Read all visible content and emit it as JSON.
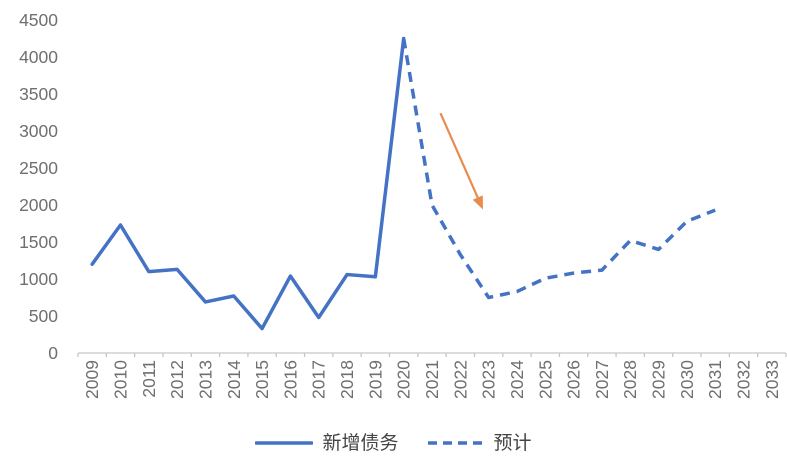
{
  "chart_data": {
    "type": "line",
    "title": "",
    "xlabel": "",
    "ylabel": "",
    "categories": [
      "2009",
      "2010",
      "2011",
      "2012",
      "2013",
      "2014",
      "2015",
      "2016",
      "2017",
      "2018",
      "2019",
      "2020",
      "2021",
      "2022",
      "2023",
      "2024",
      "2025",
      "2026",
      "2027",
      "2028",
      "2029",
      "2030",
      "2031",
      "2032",
      "2033"
    ],
    "ylim": [
      0,
      4500
    ],
    "ytick_step": 500,
    "yticks": [
      "0",
      "500",
      "1000",
      "1500",
      "2000",
      "2500",
      "3000",
      "3500",
      "4000",
      "4500"
    ],
    "grid": "off",
    "legend_position": "bottom",
    "series": [
      {
        "name": "新增债务",
        "line_style": "solid",
        "color": "#4472C4",
        "start_category": "2009",
        "values": [
          1200,
          1730,
          1100,
          1130,
          690,
          770,
          330,
          1040,
          480,
          1060,
          1030,
          4250
        ]
      },
      {
        "name": "预计",
        "line_style": "dashed",
        "color": "#4472C4",
        "start_category": "2020",
        "values": [
          4250,
          2000,
          1330,
          750,
          830,
          1010,
          1080,
          1120,
          1520,
          1400,
          1780,
          1930
        ]
      }
    ],
    "annotation": {
      "type": "arrow",
      "color": "#E78C4E",
      "from": {
        "category_x": 2021.3,
        "value": 3240
      },
      "to": {
        "category_x": 2022.8,
        "value": 1940
      }
    },
    "axis_color": "#C6C6C6",
    "tick_label_color": "#6F6F6F",
    "legend_text_color": "#444444",
    "background": "#FFFFFF"
  }
}
